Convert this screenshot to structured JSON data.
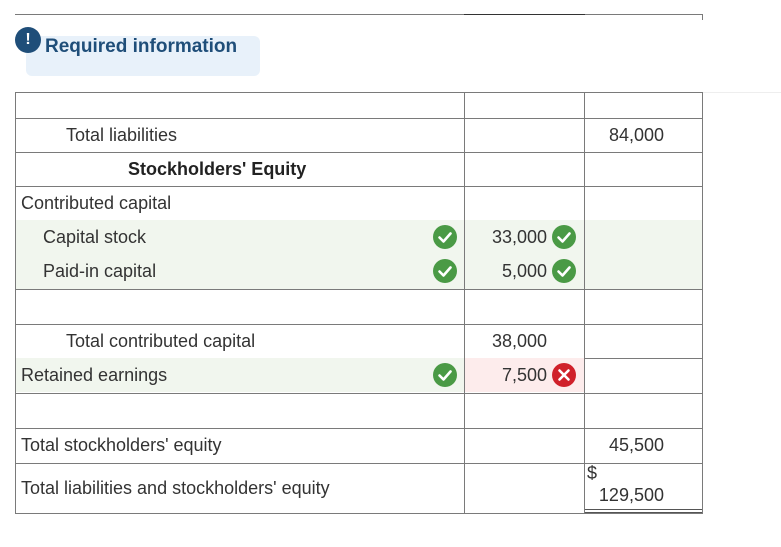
{
  "banner": {
    "alert_glyph": "!",
    "title": "Required information"
  },
  "colors": {
    "accent": "#1f4e79",
    "banner_bg": "#e8f1fa",
    "correct": "#4a9a45",
    "incorrect": "#d0212a",
    "row_shade": "#f1f6ee"
  },
  "sheet": {
    "total_liabilities": {
      "label": "Total liabilities",
      "total": "84,000"
    },
    "equity_heading": "Stockholders' Equity",
    "contributed_capital": "Contributed capital",
    "capital_stock": {
      "label": "Capital stock",
      "amount": "33,000",
      "label_status": "correct",
      "amount_status": "correct"
    },
    "paid_in_capital": {
      "label": "Paid-in capital",
      "amount": "5,000",
      "label_status": "correct",
      "amount_status": "correct"
    },
    "total_contributed": {
      "label": "Total contributed capital",
      "amount": "38,000"
    },
    "retained_earnings": {
      "label": "Retained earnings",
      "amount": "7,500",
      "label_status": "correct",
      "amount_status": "incorrect"
    },
    "total_equity": {
      "label": "Total stockholders' equity",
      "total": "45,500"
    },
    "total_liab_equity": {
      "label": "Total liabilities and stockholders' equity",
      "currency": "$",
      "total": "129,500"
    }
  },
  "icons": {
    "correct": "check-circle-icon",
    "incorrect": "x-circle-icon",
    "alert": "exclamation-icon"
  }
}
